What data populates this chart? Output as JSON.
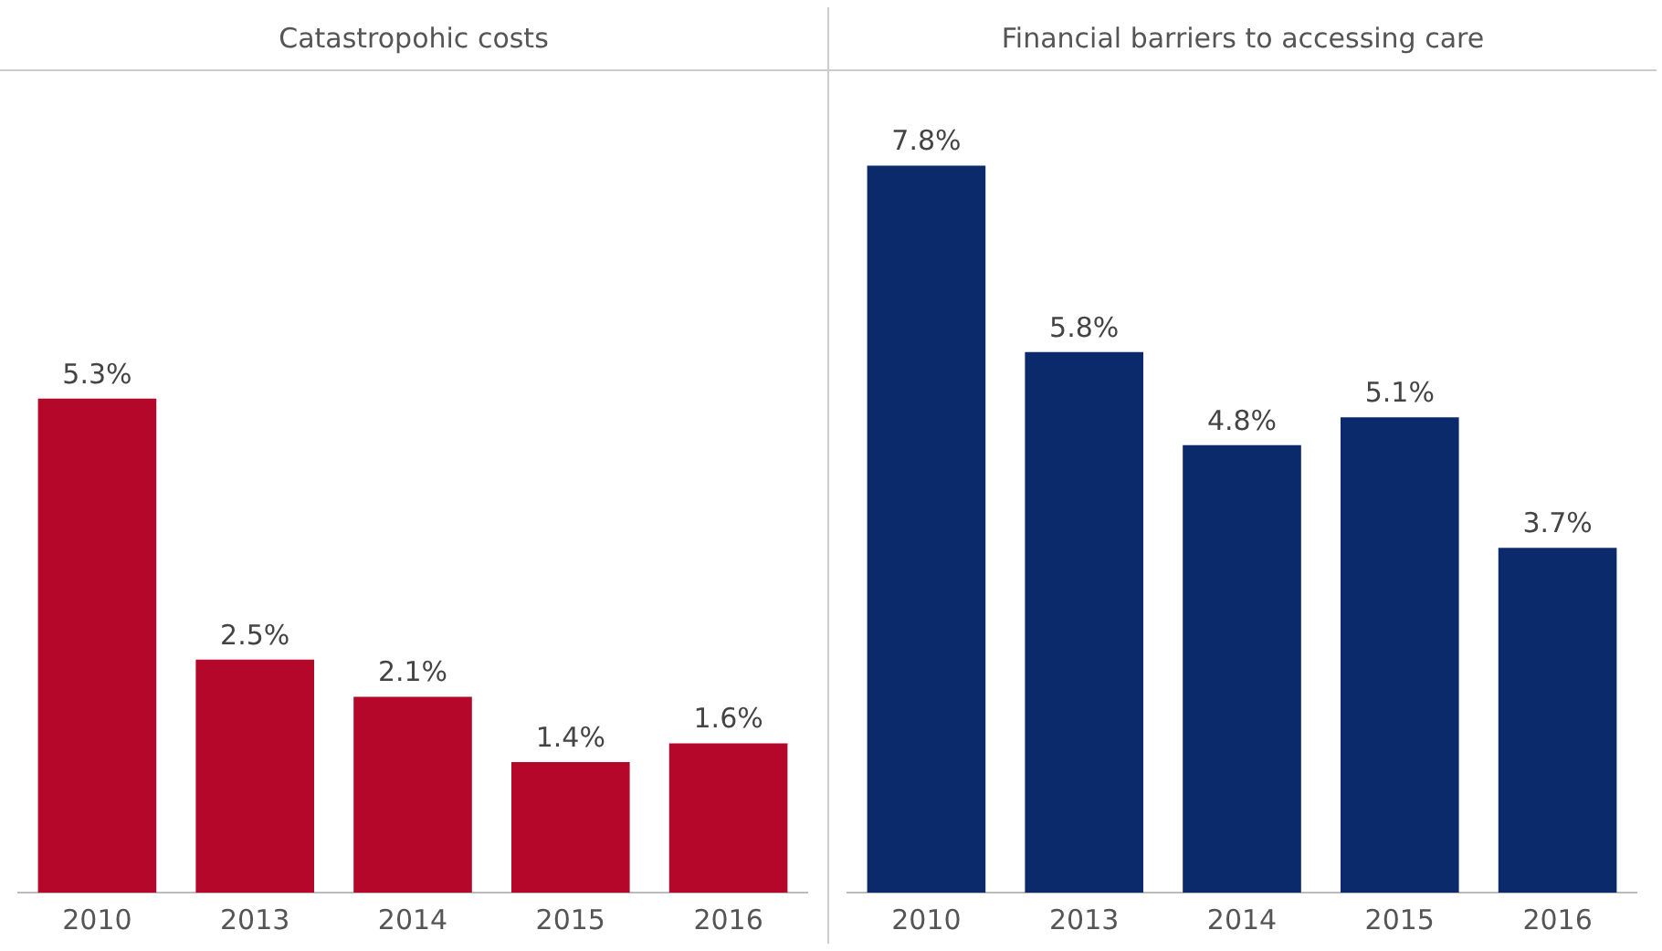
{
  "chart_data": [
    {
      "type": "bar",
      "title": "Catastropohic costs",
      "categories": [
        "2010",
        "2013",
        "2014",
        "2015",
        "2016"
      ],
      "values": [
        5.3,
        2.5,
        2.1,
        1.4,
        1.6
      ],
      "value_labels": [
        "5.3%",
        "2.5%",
        "2.1%",
        "1.4%",
        "1.6%"
      ],
      "color": "#b5072a",
      "grid": false,
      "legend": false,
      "tick_labels": "x"
    },
    {
      "type": "bar",
      "title": "Financial barriers to accessing care",
      "categories": [
        "2010",
        "2013",
        "2014",
        "2015",
        "2016"
      ],
      "values": [
        7.8,
        5.8,
        4.8,
        5.1,
        3.7
      ],
      "value_labels": [
        "7.8%",
        "5.8%",
        "4.8%",
        "5.1%",
        "3.7%"
      ],
      "color": "#0b2a6b",
      "grid": false,
      "legend": false,
      "tick_labels": "x"
    }
  ]
}
